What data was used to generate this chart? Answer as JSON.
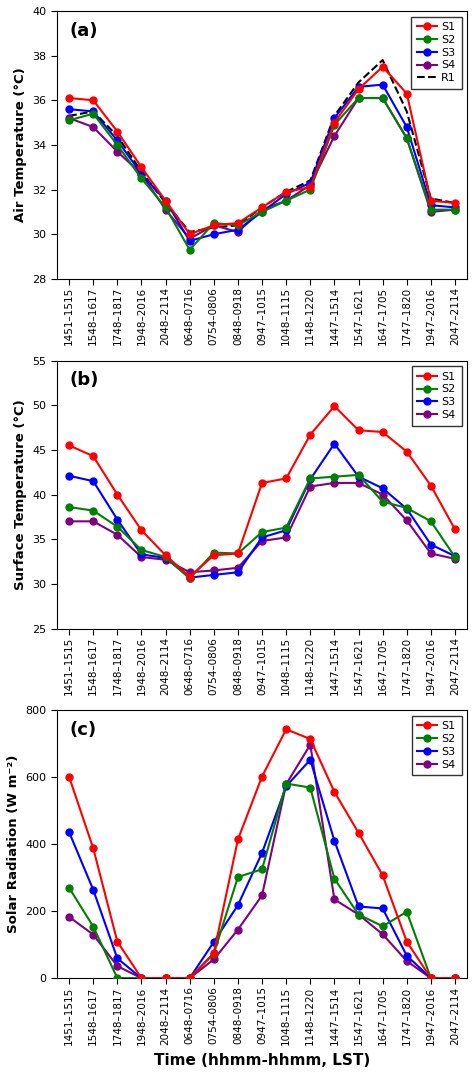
{
  "x_labels": [
    "1451–1515",
    "1548–1617",
    "1748–1817",
    "1948–2016",
    "2048–2114",
    "0648–0716",
    "0754–0806",
    "0848–0918",
    "0947–1015",
    "1048–1115",
    "1148–1220",
    "1447–1514",
    "1547–1621",
    "1647–1705",
    "1747–1820",
    "1947–2016",
    "2047–2114"
  ],
  "panel_a": {
    "title": "(a)",
    "ylabel": "Air Temperature (°C)",
    "ylim": [
      28,
      40
    ],
    "yticks": [
      28,
      30,
      32,
      34,
      36,
      38,
      40
    ],
    "S1": [
      36.1,
      36.0,
      34.6,
      33.0,
      31.5,
      30.0,
      30.4,
      30.5,
      31.2,
      31.9,
      32.1,
      35.0,
      36.5,
      37.5,
      36.3,
      31.5,
      31.4
    ],
    "S2": [
      35.1,
      35.4,
      34.0,
      32.5,
      31.2,
      29.3,
      30.5,
      30.4,
      31.0,
      31.5,
      32.0,
      34.9,
      36.1,
      36.1,
      34.3,
      31.1,
      31.1
    ],
    "S3": [
      35.6,
      35.5,
      34.2,
      32.7,
      31.5,
      29.7,
      30.0,
      30.2,
      31.0,
      31.8,
      32.3,
      35.2,
      36.6,
      36.7,
      34.8,
      31.3,
      31.2
    ],
    "S4": [
      35.2,
      34.8,
      33.7,
      32.7,
      31.1,
      29.8,
      30.4,
      30.1,
      31.1,
      31.5,
      32.2,
      34.4,
      36.1,
      36.1,
      34.3,
      31.0,
      31.1
    ],
    "R1": [
      35.3,
      35.5,
      34.4,
      32.8,
      31.4,
      30.1,
      30.3,
      30.4,
      31.2,
      31.9,
      32.4,
      35.3,
      36.8,
      37.8,
      35.5,
      31.6,
      31.4
    ]
  },
  "panel_b": {
    "title": "(b)",
    "ylabel": "Surface Temperature (°C)",
    "ylim": [
      25,
      55
    ],
    "yticks": [
      25,
      30,
      35,
      40,
      45,
      50,
      55
    ],
    "S1": [
      45.5,
      44.3,
      40.0,
      36.0,
      33.2,
      30.8,
      33.2,
      33.4,
      41.3,
      41.8,
      46.7,
      49.9,
      47.2,
      47.0,
      44.8,
      41.0,
      36.1
    ],
    "S2": [
      38.6,
      38.2,
      36.4,
      33.8,
      33.0,
      30.6,
      33.5,
      33.4,
      35.8,
      36.3,
      41.8,
      42.0,
      42.2,
      39.2,
      38.5,
      37.0,
      33.0
    ],
    "S3": [
      42.1,
      41.5,
      37.2,
      33.3,
      32.9,
      30.7,
      31.0,
      31.3,
      35.2,
      36.0,
      41.7,
      45.7,
      42.0,
      40.7,
      38.4,
      34.4,
      33.1
    ],
    "S4": [
      37.0,
      37.0,
      35.5,
      33.0,
      32.7,
      31.3,
      31.5,
      31.8,
      34.8,
      35.2,
      40.9,
      41.3,
      41.3,
      40.0,
      37.1,
      33.4,
      32.8
    ]
  },
  "panel_c": {
    "title": "(c)",
    "ylabel": "Solar Radiation (W m⁻²)",
    "ylim": [
      0,
      800
    ],
    "yticks": [
      0,
      200,
      400,
      600,
      800
    ],
    "S1": [
      601,
      388,
      109,
      0,
      0,
      0,
      75,
      414,
      602,
      743,
      714,
      556,
      434,
      307,
      109,
      0,
      0
    ],
    "S2": [
      270,
      154,
      0,
      0,
      0,
      0,
      73,
      302,
      325,
      581,
      569,
      297,
      190,
      155,
      198,
      0,
      0
    ],
    "S3": [
      436,
      264,
      59,
      0,
      0,
      0,
      108,
      218,
      374,
      573,
      652,
      410,
      214,
      208,
      67,
      0,
      0
    ],
    "S4": [
      183,
      130,
      36,
      0,
      0,
      0,
      56,
      145,
      247,
      579,
      697,
      235,
      190,
      131,
      51,
      0,
      0
    ]
  },
  "colors": {
    "S1": "#FF0000",
    "S2": "#008000",
    "S3": "#0000FF",
    "S4": "#800080",
    "R1": "#000000"
  }
}
